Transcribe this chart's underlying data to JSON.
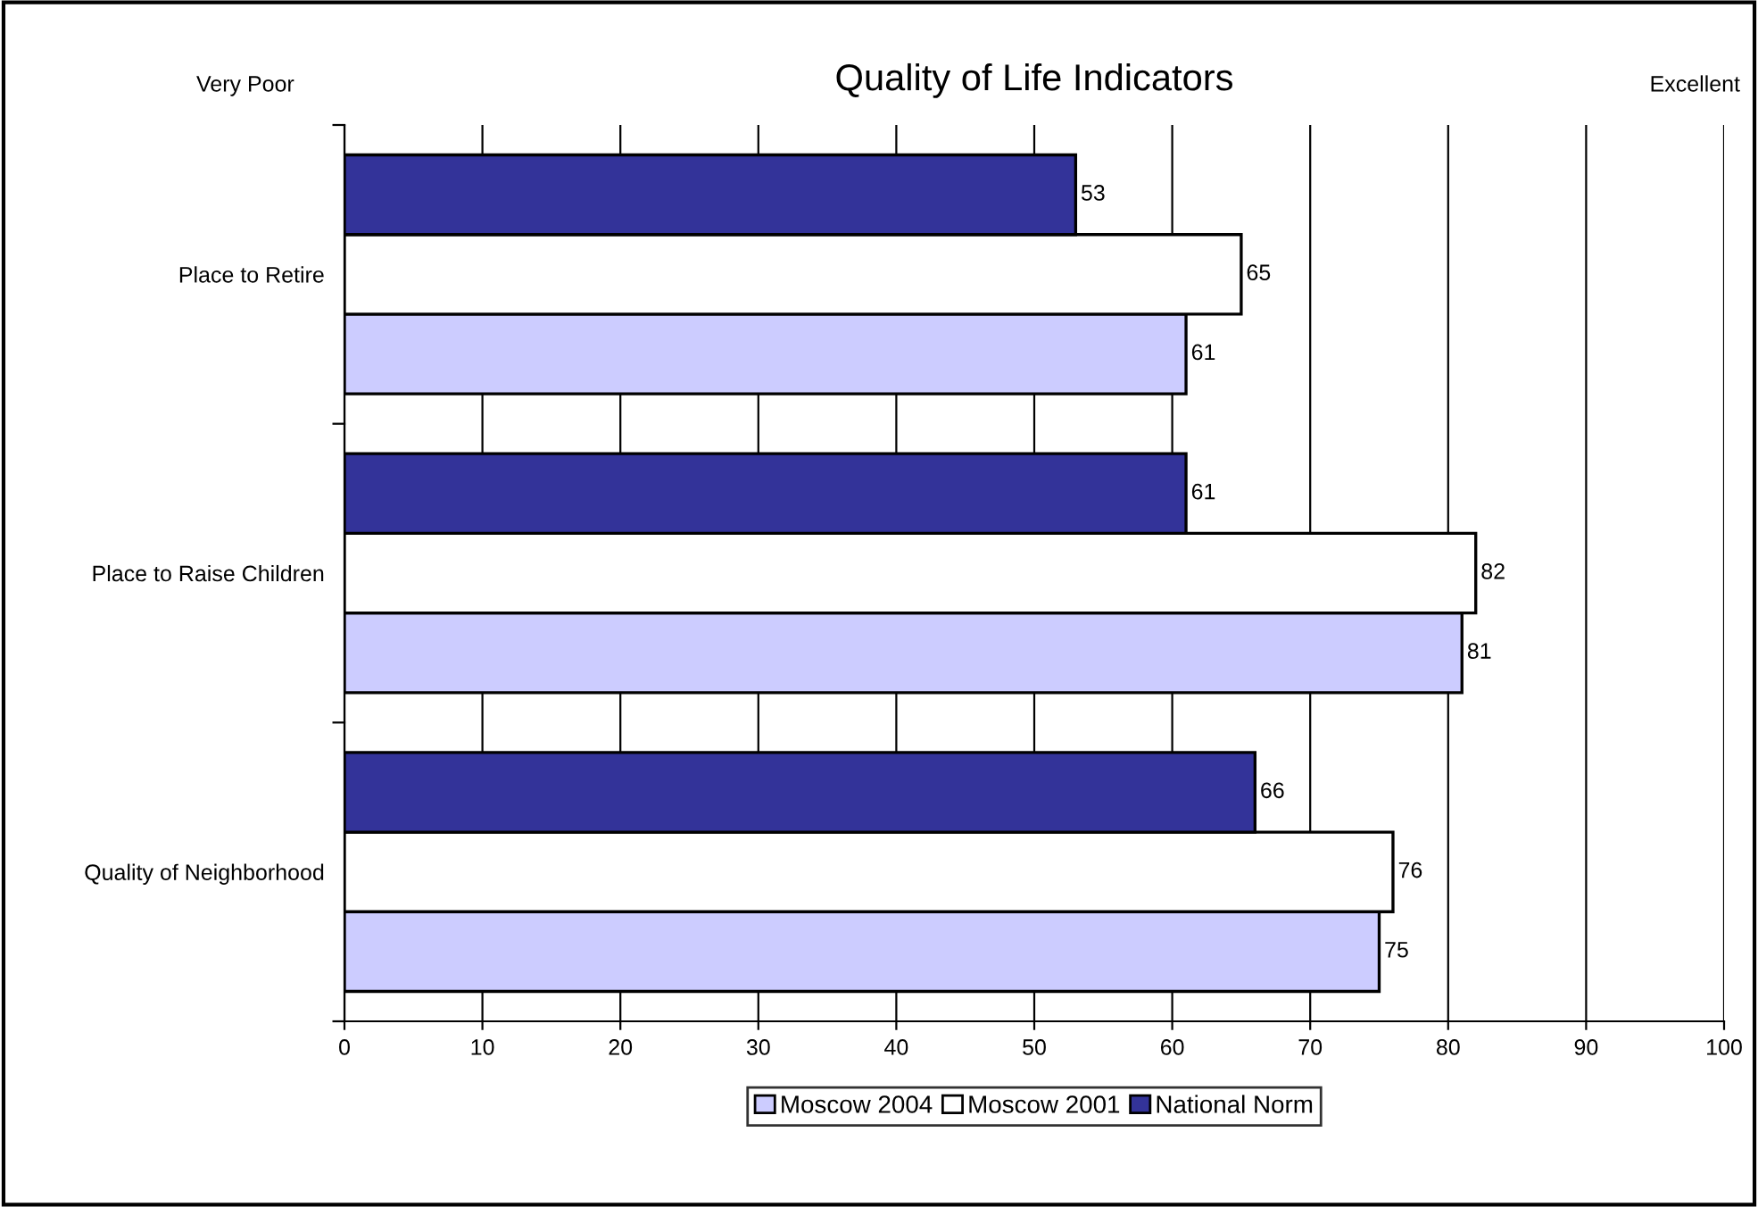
{
  "chart_data": {
    "type": "bar",
    "orientation": "horizontal",
    "title": "Quality of Life Indicators",
    "categories": [
      "Place to Retire",
      "Place to Raise Children",
      "Quality of Neighborhood"
    ],
    "series": [
      {
        "name": "Moscow 2004",
        "color": "#ccccff",
        "values": [
          61,
          81,
          75
        ]
      },
      {
        "name": "Moscow 2001",
        "color": "#ffffff",
        "values": [
          65,
          82,
          76
        ]
      },
      {
        "name": "National Norm",
        "color": "#333399",
        "values": [
          53,
          61,
          66
        ]
      }
    ],
    "xlim": [
      0,
      100
    ],
    "xticks": [
      0,
      10,
      20,
      30,
      40,
      50,
      60,
      70,
      80,
      90,
      100
    ],
    "grid": "x",
    "legend": "bottom",
    "data_labels": true,
    "annotations": [
      "Very Poor",
      "Excellent"
    ]
  }
}
